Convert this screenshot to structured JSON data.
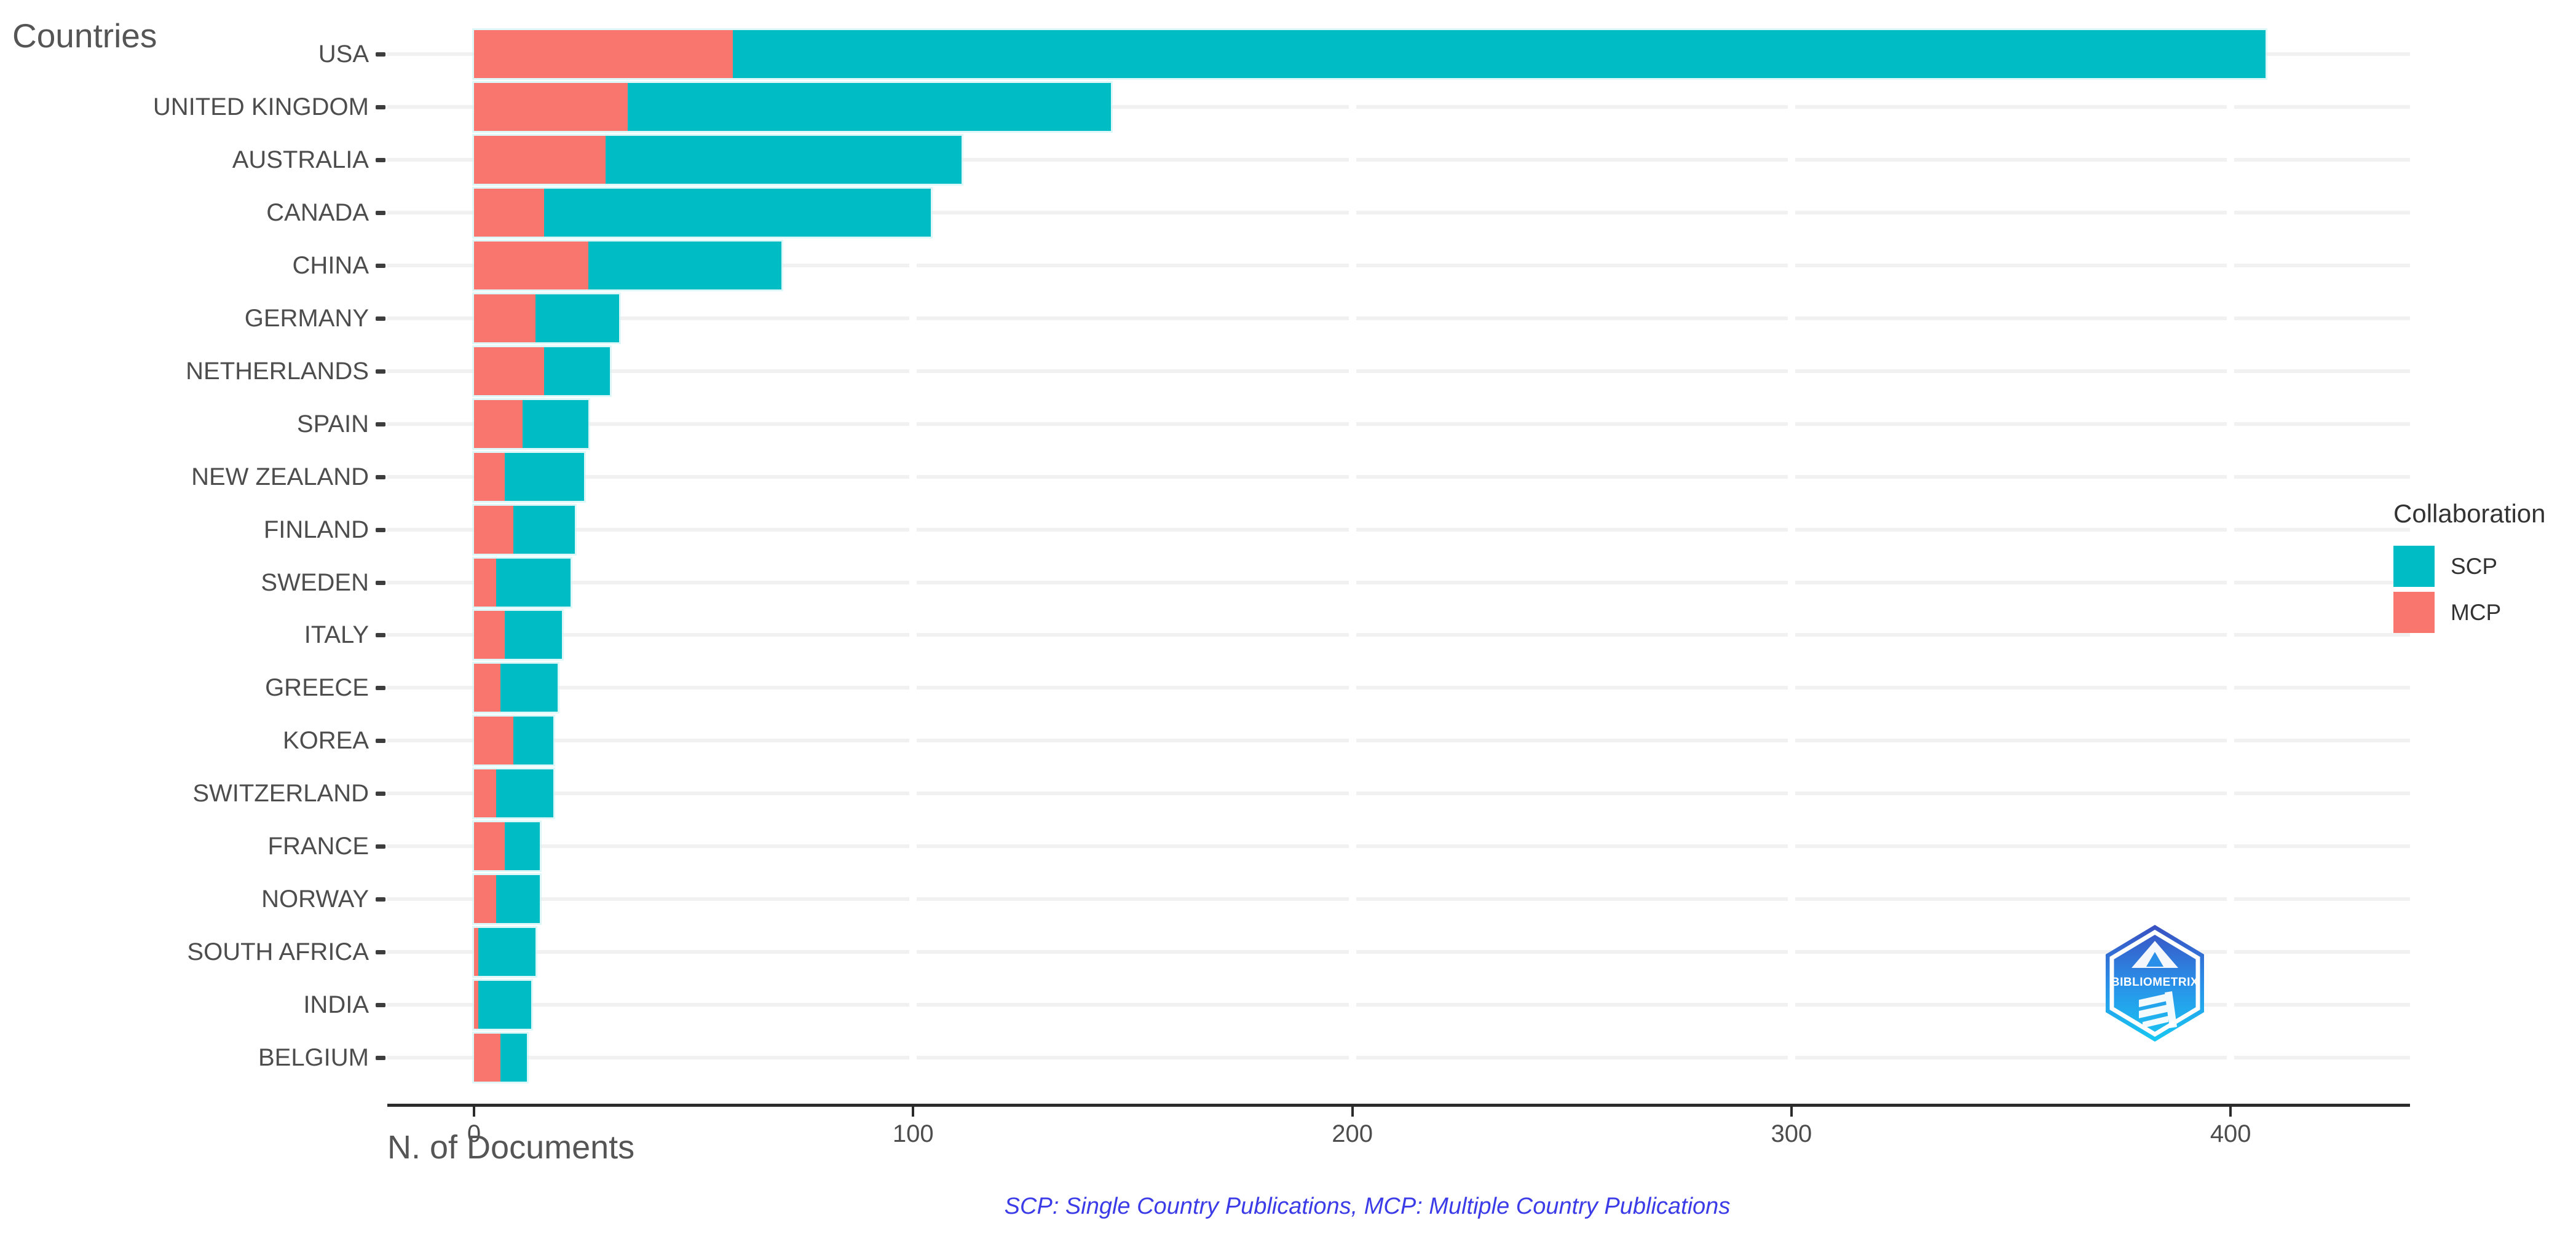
{
  "title": "Countries",
  "x_axis_title": "N. of Documents",
  "caption": "SCP: Single Country Publications, MCP: Multiple Country Publications",
  "legend": {
    "title": "Collaboration",
    "items": [
      {
        "label": "SCP",
        "color": "#00bcc4"
      },
      {
        "label": "MCP",
        "color": "#f8766d"
      }
    ]
  },
  "watermark_text": "BIBLIOMETRIX",
  "colors": {
    "scp": "#00bcc4",
    "mcp": "#f8766d",
    "axis_line": "#2b2b2b",
    "grid": "#f1f1f1",
    "tick_text": "#4d4d4d",
    "title_text": "#555555",
    "caption_blue": "#3b3be8"
  },
  "chart_data": {
    "type": "bar",
    "orientation": "horizontal",
    "stacked": true,
    "title": "Countries",
    "xlabel": "N. of Documents",
    "ylabel": "",
    "legend_position": "right",
    "grid": "horizontal-light",
    "xlim": [
      0,
      441
    ],
    "x_ticks": [
      0,
      100,
      200,
      300,
      400
    ],
    "categories": [
      "USA",
      "UNITED KINGDOM",
      "AUSTRALIA",
      "CANADA",
      "CHINA",
      "GERMANY",
      "NETHERLANDS",
      "SPAIN",
      "NEW ZEALAND",
      "FINLAND",
      "SWEDEN",
      "ITALY",
      "GREECE",
      "KOREA",
      "SWITZERLAND",
      "FRANCE",
      "NORWAY",
      "SOUTH AFRICA",
      "INDIA",
      "BELGIUM"
    ],
    "series": [
      {
        "name": "MCP",
        "color": "#f8766d",
        "values": [
          59,
          35,
          30,
          16,
          26,
          14,
          16,
          11,
          7,
          9,
          5,
          7,
          6,
          9,
          5,
          7,
          5,
          1,
          1,
          6
        ]
      },
      {
        "name": "SCP",
        "color": "#00bcc4",
        "values": [
          349,
          110,
          81,
          88,
          44,
          19,
          15,
          15,
          18,
          14,
          17,
          13,
          13,
          9,
          13,
          8,
          10,
          13,
          12,
          6
        ]
      }
    ],
    "totals": [
      408,
      145,
      111,
      104,
      70,
      33,
      31,
      26,
      25,
      23,
      22,
      20,
      19,
      18,
      18,
      15,
      15,
      14,
      13,
      12
    ]
  }
}
